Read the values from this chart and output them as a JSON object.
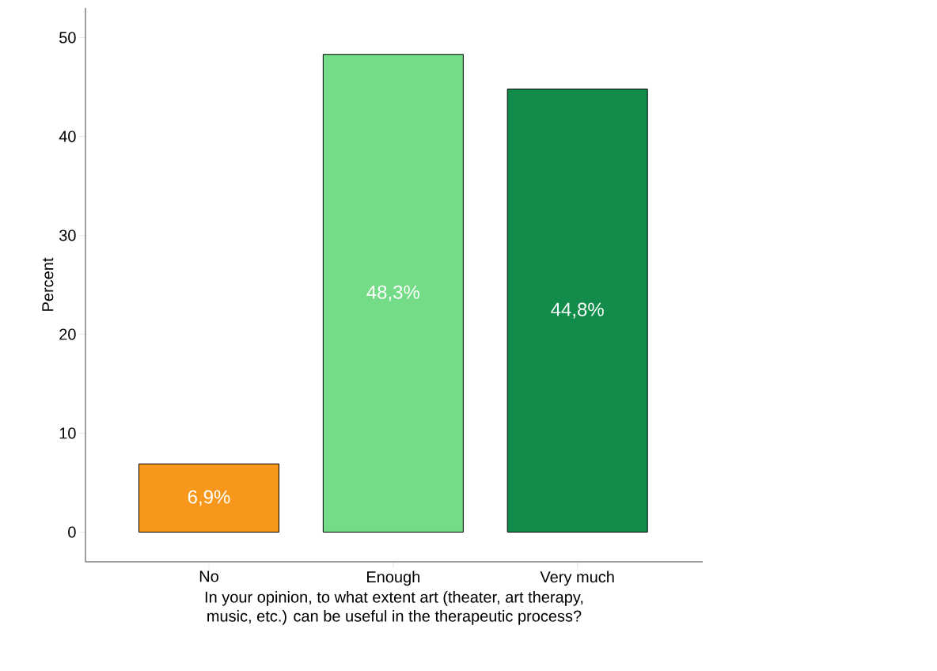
{
  "chart_data": {
    "type": "bar",
    "xlabel": "In your opinion, to what extent art (theater, art therapy,\nmusic, etc.) can be useful in the therapeutic process?",
    "ylabel": "Percent",
    "categories": [
      "No",
      "Enough",
      "Very much"
    ],
    "values": [
      6.9,
      48.3,
      44.8
    ],
    "colors": [
      "#f7981d",
      "#74dc86",
      "#118c4a"
    ],
    "value_labels": [
      "6,9%",
      "48,3%",
      "44,8%"
    ],
    "ylim": [
      -3,
      53
    ],
    "yticks": [
      0,
      10,
      20,
      30,
      40,
      50
    ]
  }
}
